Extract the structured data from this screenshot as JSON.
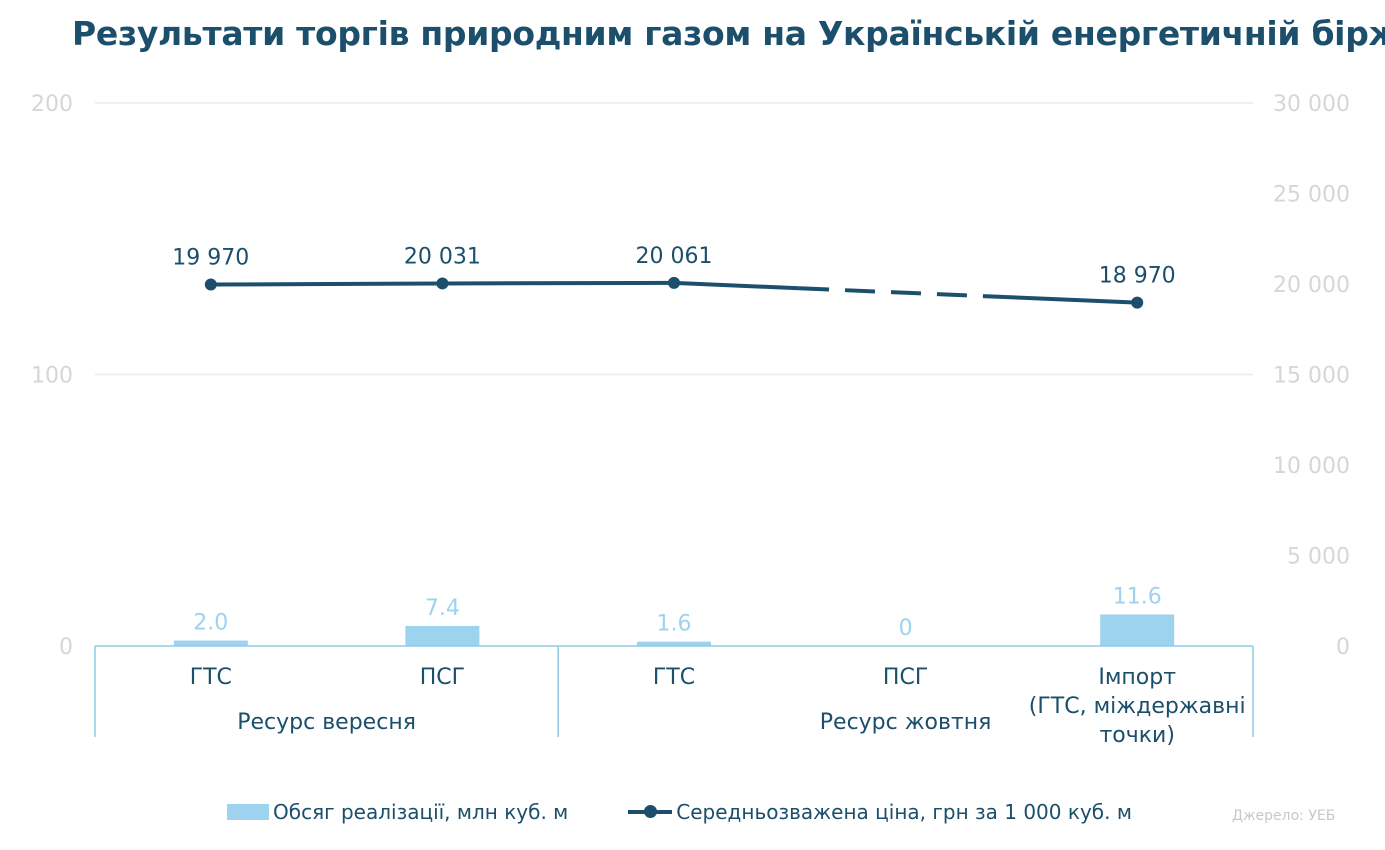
{
  "title": "Результати торгів природним газом на Українській енергетичній біржі",
  "source": "Джерело: УЕБ",
  "chart_data": {
    "type": "bar+line",
    "title": "Результати торгів природним газом на Українській енергетичній біржі",
    "categories": [
      "ГТС",
      "ПСГ",
      "ГТС",
      "ПСГ",
      "Імпорт (ГТС, міждержавні точки)"
    ],
    "category_lines": [
      [
        "ГТС"
      ],
      [
        "ПСГ"
      ],
      [
        "ГТС"
      ],
      [
        "ПСГ"
      ],
      [
        "Імпорт",
        "(ГТС, міждержавні",
        "точки)"
      ]
    ],
    "groups": [
      {
        "label": "Ресурс вересня",
        "span": [
          0,
          1
        ]
      },
      {
        "label": "Ресурс жовтня",
        "span": [
          2,
          4
        ]
      }
    ],
    "series": [
      {
        "name": "Обсяг реалізації, млн куб. м",
        "kind": "bar",
        "axis": "left",
        "values": [
          2.0,
          7.4,
          1.6,
          0,
          11.6
        ],
        "labels": [
          "2.0",
          "7.4",
          "1.6",
          "0",
          "11.6"
        ],
        "color": "#9dd3ee"
      },
      {
        "name": "Середньозважена ціна, грн за 1 000 куб. м",
        "kind": "line",
        "axis": "right",
        "values": [
          19970,
          20031,
          20061,
          null,
          18970
        ],
        "labels": [
          "19 970",
          "20 031",
          "20 061",
          "",
          "18 970"
        ],
        "dashed_segment": [
          2,
          4
        ],
        "color": "#1b4f6b"
      }
    ],
    "y_left": {
      "range": [
        0,
        200
      ],
      "ticks": [
        "0",
        "100",
        "200"
      ],
      "tick_values": [
        0,
        100,
        200
      ]
    },
    "y_right": {
      "range": [
        0,
        30000
      ],
      "ticks": [
        "0",
        "5 000",
        "10 000",
        "15 000",
        "20 000",
        "25 000",
        "30 000"
      ],
      "tick_values": [
        0,
        5000,
        10000,
        15000,
        20000,
        25000,
        30000
      ]
    },
    "grid": true,
    "legend_position": "bottom"
  }
}
